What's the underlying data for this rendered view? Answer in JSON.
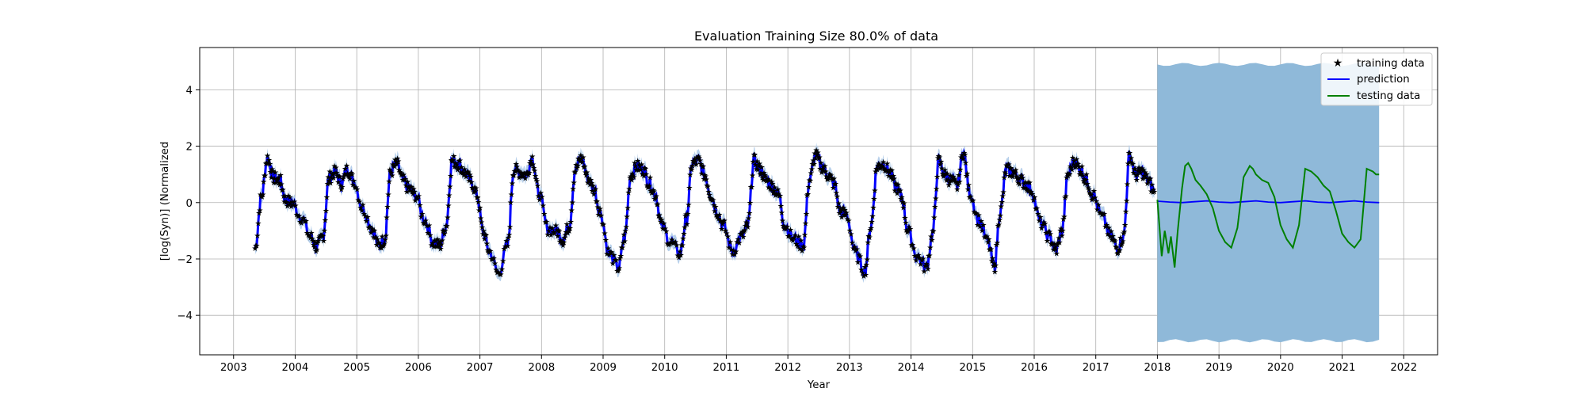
{
  "chart_data": {
    "type": "line",
    "title": "Evaluation Training Size 80.0% of data",
    "xlabel": "Year",
    "ylabel": "[log(Syn)] (Normalized",
    "xlim": [
      2002.45,
      2022.55
    ],
    "ylim": [
      -5.4,
      5.5
    ],
    "x_ticks": [
      2003,
      2004,
      2005,
      2006,
      2007,
      2008,
      2009,
      2010,
      2011,
      2012,
      2013,
      2014,
      2015,
      2016,
      2017,
      2018,
      2019,
      2020,
      2021,
      2022
    ],
    "y_ticks": [
      -4,
      -2,
      0,
      2,
      4
    ],
    "grid": true,
    "legend_position": "top-right",
    "legend": [
      "training data",
      "prediction",
      "testing data"
    ],
    "colors": {
      "training": "#000000",
      "prediction": "#0000ff",
      "testing": "#008000",
      "band": "#8fb9d9",
      "band_light": "#b7d0eb"
    },
    "series": [
      {
        "name": "training data",
        "style": "star-markers",
        "x": [
          2003.35,
          2003.45,
          2003.55,
          2003.65,
          2003.75,
          2003.85,
          2003.95,
          2004.1,
          2004.25,
          2004.35,
          2004.45,
          2004.55,
          2004.65,
          2004.75,
          2004.85,
          2004.95,
          2005.1,
          2005.25,
          2005.35,
          2005.45,
          2005.55,
          2005.65,
          2005.75,
          2005.85,
          2005.95,
          2006.1,
          2006.25,
          2006.35,
          2006.45,
          2006.55,
          2006.65,
          2006.75,
          2006.85,
          2006.95,
          2007.05,
          2007.15,
          2007.3,
          2007.45,
          2007.55,
          2007.65,
          2007.75,
          2007.85,
          2007.95,
          2008.1,
          2008.25,
          2008.35,
          2008.45,
          2008.55,
          2008.65,
          2008.75,
          2008.85,
          2008.95,
          2009.1,
          2009.25,
          2009.35,
          2009.45,
          2009.55,
          2009.65,
          2009.75,
          2009.85,
          2009.95,
          2010.1,
          2010.25,
          2010.35,
          2010.45,
          2010.55,
          2010.65,
          2010.75,
          2010.85,
          2010.95,
          2011.1,
          2011.25,
          2011.35,
          2011.45,
          2011.55,
          2011.65,
          2011.75,
          2011.85,
          2011.95,
          2012.1,
          2012.25,
          2012.35,
          2012.45,
          2012.55,
          2012.65,
          2012.75,
          2012.85,
          2012.95,
          2013.1,
          2013.25,
          2013.35,
          2013.45,
          2013.55,
          2013.65,
          2013.75,
          2013.85,
          2013.95,
          2014.1,
          2014.25,
          2014.35,
          2014.45,
          2014.55,
          2014.65,
          2014.75,
          2014.85,
          2014.95,
          2015.1,
          2015.25,
          2015.35,
          2015.45,
          2015.55,
          2015.65,
          2015.75,
          2015.85,
          2015.95,
          2016.1,
          2016.25,
          2016.35,
          2016.45,
          2016.55,
          2016.65,
          2016.75,
          2016.85,
          2016.95,
          2017.1,
          2017.25,
          2017.35,
          2017.45,
          2017.55,
          2017.65,
          2017.75,
          2017.85,
          2017.95
        ],
        "y": [
          -1.6,
          0.2,
          1.6,
          0.9,
          0.8,
          0.1,
          0.0,
          -0.5,
          -1.2,
          -1.55,
          -1.2,
          0.9,
          1.1,
          0.7,
          1.2,
          0.8,
          -0.2,
          -0.9,
          -1.5,
          -1.3,
          1.1,
          1.4,
          0.8,
          0.5,
          0.3,
          -0.6,
          -1.4,
          -1.5,
          -0.8,
          1.5,
          1.4,
          1.1,
          0.8,
          0.3,
          -1.0,
          -1.7,
          -2.5,
          -1.5,
          1.2,
          1.1,
          1.0,
          1.6,
          0.4,
          -0.9,
          -1.0,
          -1.3,
          -0.8,
          1.2,
          1.6,
          0.9,
          0.5,
          -0.3,
          -1.8,
          -2.3,
          -1.2,
          1.0,
          1.3,
          1.2,
          0.7,
          0.3,
          -0.8,
          -1.4,
          -1.8,
          -0.6,
          1.4,
          1.5,
          1.0,
          0.3,
          -0.3,
          -0.8,
          -1.7,
          -1.2,
          -0.8,
          1.5,
          1.2,
          0.8,
          0.6,
          0.3,
          -0.8,
          -1.3,
          -1.5,
          0.8,
          1.7,
          1.3,
          1.0,
          0.7,
          -0.3,
          -0.4,
          -1.8,
          -2.4,
          -0.8,
          1.3,
          1.4,
          1.1,
          0.6,
          0.2,
          -1.0,
          -1.9,
          -2.3,
          -1.1,
          1.5,
          1.0,
          0.8,
          0.6,
          1.8,
          0.4,
          -0.6,
          -1.4,
          -2.3,
          -0.3,
          1.2,
          1.1,
          0.9,
          0.7,
          0.5,
          -0.7,
          -1.2,
          -1.7,
          -1.0,
          1.0,
          1.5,
          1.2,
          0.8,
          0.3,
          -0.5,
          -1.2,
          -1.6,
          -1.2,
          1.7,
          1.0,
          1.1,
          0.8,
          0.4
        ]
      },
      {
        "name": "prediction",
        "style": "line",
        "x": [
          2018.0,
          2018.2,
          2018.4,
          2018.6,
          2018.8,
          2019.0,
          2019.2,
          2019.4,
          2019.6,
          2019.8,
          2020.0,
          2020.2,
          2020.4,
          2020.6,
          2020.8,
          2021.0,
          2021.2,
          2021.4,
          2021.6
        ],
        "y": [
          0.05,
          0.02,
          0.0,
          0.03,
          0.06,
          0.02,
          0.0,
          0.03,
          0.06,
          0.02,
          0.0,
          0.03,
          0.06,
          0.02,
          0.0,
          0.03,
          0.06,
          0.02,
          0.0
        ]
      },
      {
        "name": "testing data",
        "style": "line",
        "x": [
          2018.0,
          2018.07,
          2018.12,
          2018.18,
          2018.22,
          2018.28,
          2018.33,
          2018.4,
          2018.45,
          2018.5,
          2018.55,
          2018.62,
          2018.7,
          2018.8,
          2018.9,
          2019.0,
          2019.1,
          2019.2,
          2019.3,
          2019.4,
          2019.5,
          2019.55,
          2019.6,
          2019.7,
          2019.8,
          2019.9,
          2020.0,
          2020.1,
          2020.2,
          2020.3,
          2020.4,
          2020.5,
          2020.55,
          2020.6,
          2020.7,
          2020.8,
          2020.9,
          2021.0,
          2021.1,
          2021.2,
          2021.3,
          2021.4,
          2021.5,
          2021.55,
          2021.6
        ],
        "y": [
          0.1,
          -1.9,
          -1.0,
          -1.8,
          -1.2,
          -2.3,
          -1.0,
          0.5,
          1.3,
          1.4,
          1.2,
          0.8,
          0.6,
          0.3,
          -0.2,
          -1.0,
          -1.4,
          -1.6,
          -0.9,
          0.9,
          1.3,
          1.2,
          1.0,
          0.8,
          0.7,
          0.2,
          -0.8,
          -1.3,
          -1.6,
          -0.8,
          1.2,
          1.1,
          1.0,
          0.9,
          0.6,
          0.4,
          -0.3,
          -1.1,
          -1.4,
          -1.6,
          -1.3,
          1.2,
          1.1,
          1.0,
          1.0
        ]
      }
    ],
    "uncertainty_band": {
      "x_start": 2018.0,
      "x_end": 2021.6,
      "lower": -4.9,
      "upper": 4.9
    }
  }
}
